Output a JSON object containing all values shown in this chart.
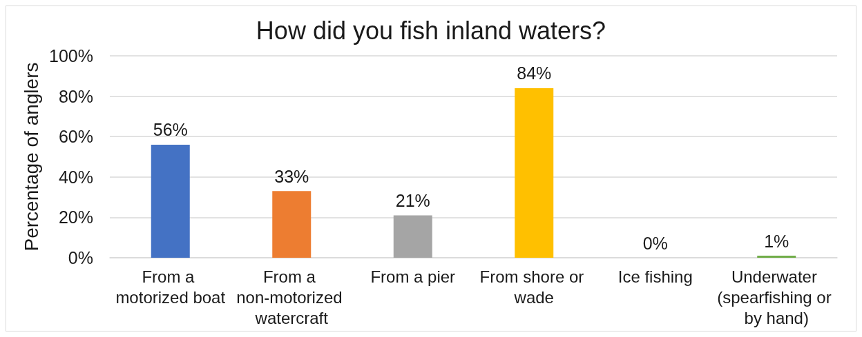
{
  "chart_data": {
    "type": "bar",
    "title": "How did you fish inland waters?",
    "ylabel": "Percentage of anglers",
    "categories": [
      "From a motorized boat",
      "From a non-motorized watercraft",
      "From a pier",
      "From shore or wade",
      "Ice fishing",
      "Underwater (spearfishing or by hand)"
    ],
    "values": [
      56,
      33,
      21,
      84,
      0,
      1
    ],
    "colors": [
      "#4472c4",
      "#ed7d31",
      "#a5a5a5",
      "#ffc000",
      "#5b9bd5",
      "#70ad47"
    ],
    "value_labels": [
      "56%",
      "33%",
      "21%",
      "84%",
      "0%",
      "1%"
    ],
    "ylim": [
      0,
      100
    ],
    "yticks": [
      {
        "value": 0,
        "label": "0%"
      },
      {
        "value": 20,
        "label": "20%"
      },
      {
        "value": 40,
        "label": "40%"
      },
      {
        "value": 60,
        "label": "60%"
      },
      {
        "value": 80,
        "label": "80%"
      },
      {
        "value": 100,
        "label": "100%"
      }
    ],
    "grid": "y"
  }
}
